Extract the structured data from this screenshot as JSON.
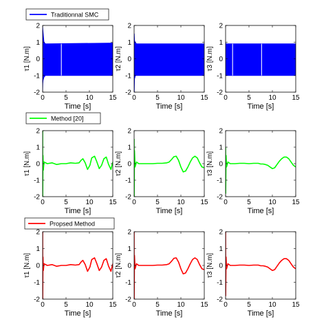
{
  "chart_data": [
    {
      "type": "line",
      "legend": "Traditionnal SMC",
      "color": "#0000ff",
      "xlabel": "Time [s]",
      "xlim": [
        0,
        15
      ],
      "ylim": [
        -2,
        2
      ],
      "xticks": [
        "0",
        "5",
        "10",
        "15"
      ],
      "yticks": [
        "2",
        "1",
        "0",
        "-1",
        "-2"
      ],
      "ylabels": [
        "τ1 [N.m]",
        "τ2 [N.m]",
        "τ3 [N.m]"
      ],
      "band": [
        {
          "x": [
            0,
            0.05,
            0.1,
            0.3,
            0.6,
            1,
            15
          ],
          "upper": [
            2,
            1.8,
            1.6,
            1.0,
            0.9,
            0.9,
            0.95
          ],
          "lower": [
            -2,
            -1.5,
            -1.3,
            -1.1,
            -1.0,
            -1.0,
            -1.0
          ],
          "gaps": [
            4
          ]
        },
        {
          "x": [
            0,
            0.05,
            0.1,
            0.3,
            0.6,
            1,
            15
          ],
          "upper": [
            1.5,
            1.5,
            1.1,
            0.95,
            0.9,
            0.9,
            0.9
          ],
          "lower": [
            -2,
            -2,
            -1.2,
            -1.0,
            -1.0,
            -1.0,
            -1.0
          ],
          "gaps": []
        },
        {
          "x": [
            0,
            0.05,
            0.1,
            0.3,
            0.6,
            1,
            15
          ],
          "upper": [
            1.0,
            0.95,
            0.9,
            0.9,
            0.9,
            0.9,
            0.9
          ],
          "lower": [
            -1.0,
            -1.0,
            -1.0,
            -1.0,
            -1.0,
            -1.0,
            -1.0
          ],
          "gaps": [
            1.5,
            7.7
          ]
        }
      ]
    },
    {
      "type": "line",
      "legend": "Method [20]",
      "color": "#00ff00",
      "xlabel": "Time [s]",
      "xlim": [
        0,
        15
      ],
      "ylim": [
        -2,
        2
      ],
      "xticks": [
        "0",
        "5",
        "10",
        "15"
      ],
      "yticks": [
        "2",
        "1",
        "0",
        "-1",
        "-2"
      ],
      "ylabels": [
        "τ1 [N.m]",
        "τ2 [N.m]",
        "τ3 [N.m]"
      ],
      "series": [
        {
          "x": [
            0,
            0.02,
            0.08,
            0.15,
            0.3,
            1,
            2,
            3,
            4,
            5,
            6,
            7,
            7.8,
            8.2,
            8.6,
            9.1,
            9.6,
            10.1,
            10.5,
            11.1,
            11.6,
            12.1,
            12.6,
            13.1,
            13.6,
            14.1,
            14.6,
            15
          ],
          "y": [
            2,
            -2,
            0.5,
            -0.4,
            0.1,
            0.0,
            0.05,
            -0.05,
            0.0,
            0.0,
            0.05,
            0.02,
            0.05,
            0.2,
            0.3,
            0.05,
            -0.35,
            -0.1,
            0.35,
            0.45,
            0.1,
            -0.3,
            -0.1,
            0.3,
            0.4,
            -0.05,
            -0.35,
            0.1
          ]
        },
        {
          "x": [
            0,
            0.02,
            0.08,
            0.2,
            0.5,
            1,
            2,
            3,
            4,
            5,
            6,
            7,
            7.5,
            8,
            8.5,
            9,
            9.5,
            10,
            10.5,
            11,
            11.5,
            12,
            12.5,
            13,
            13.5,
            14,
            14.5,
            15
          ],
          "y": [
            1.5,
            -2,
            0.8,
            -0.2,
            0.1,
            0.0,
            0.0,
            0.0,
            0.0,
            0.02,
            0.02,
            0.05,
            0.1,
            0.25,
            0.42,
            0.45,
            0.2,
            -0.2,
            -0.5,
            -0.45,
            -0.2,
            0.1,
            0.35,
            0.45,
            0.35,
            0.05,
            -0.2,
            -0.25
          ]
        },
        {
          "x": [
            0,
            0.02,
            0.1,
            0.2,
            0.5,
            1,
            2,
            3,
            4,
            5,
            6,
            7,
            7.5,
            8,
            8.5,
            9,
            9.5,
            10,
            10.5,
            11,
            11.5,
            12,
            12.5,
            13,
            13.5,
            14,
            14.5,
            15
          ],
          "y": [
            1.0,
            -1.8,
            0.5,
            -0.2,
            0.1,
            0.0,
            0.0,
            0.02,
            0.02,
            0.0,
            0.02,
            0.02,
            -0.02,
            -0.02,
            -0.05,
            -0.1,
            -0.2,
            -0.3,
            -0.25,
            -0.05,
            0.15,
            0.3,
            0.4,
            0.4,
            0.3,
            0.1,
            -0.1,
            -0.2
          ]
        }
      ]
    },
    {
      "type": "line",
      "legend": "Propsed Method",
      "color": "#ff0000",
      "xlabel": "Time [s]",
      "xlim": [
        0,
        15
      ],
      "ylim": [
        -2,
        2
      ],
      "xticks": [
        "0",
        "5",
        "10",
        "15"
      ],
      "yticks": [
        "2",
        "1",
        "0",
        "-1",
        "-2"
      ],
      "ylabels": [
        "τ1 [N.m]",
        "τ2 [N.m]",
        "τ3 [N.m]"
      ],
      "series": [
        {
          "x": [
            0,
            0.02,
            0.08,
            0.15,
            0.3,
            1,
            2,
            3,
            4,
            5,
            6,
            7,
            7.8,
            8.2,
            8.6,
            9.1,
            9.6,
            10.1,
            10.5,
            11.1,
            11.6,
            12.1,
            12.6,
            13.1,
            13.6,
            14.1,
            14.6,
            15
          ],
          "y": [
            2,
            -2,
            0.5,
            -0.3,
            0.1,
            0.0,
            0.05,
            -0.05,
            0.0,
            0.0,
            0.05,
            0.02,
            0.05,
            0.2,
            0.3,
            0.05,
            -0.35,
            -0.1,
            0.35,
            0.45,
            0.1,
            -0.3,
            -0.1,
            0.3,
            0.4,
            -0.05,
            -0.35,
            0.1
          ]
        },
        {
          "x": [
            0,
            0.02,
            0.08,
            0.2,
            0.5,
            1,
            2,
            3,
            4,
            5,
            6,
            7,
            7.5,
            8,
            8.5,
            9,
            9.5,
            10,
            10.5,
            11,
            11.5,
            12,
            12.5,
            13,
            13.5,
            14,
            14.5,
            15
          ],
          "y": [
            2,
            -2,
            0.6,
            -0.2,
            0.1,
            0.0,
            0.0,
            0.0,
            0.0,
            0.02,
            0.02,
            0.05,
            0.1,
            0.25,
            0.42,
            0.45,
            0.2,
            -0.2,
            -0.5,
            -0.45,
            -0.2,
            0.1,
            0.35,
            0.45,
            0.35,
            0.05,
            -0.2,
            -0.25
          ]
        },
        {
          "x": [
            0,
            0.02,
            0.1,
            0.2,
            0.5,
            1,
            2,
            3,
            4,
            5,
            6,
            7,
            7.5,
            8,
            8.5,
            9,
            9.5,
            10,
            10.5,
            11,
            11.5,
            12,
            12.5,
            13,
            13.5,
            14,
            14.5,
            15
          ],
          "y": [
            2,
            -1.8,
            0.5,
            -0.2,
            0.1,
            0.0,
            0.0,
            0.02,
            0.02,
            0.0,
            0.02,
            0.02,
            -0.02,
            -0.02,
            -0.05,
            -0.1,
            -0.2,
            -0.3,
            -0.25,
            -0.05,
            0.15,
            0.3,
            0.4,
            0.4,
            0.3,
            0.1,
            -0.1,
            -0.2
          ]
        }
      ]
    }
  ]
}
